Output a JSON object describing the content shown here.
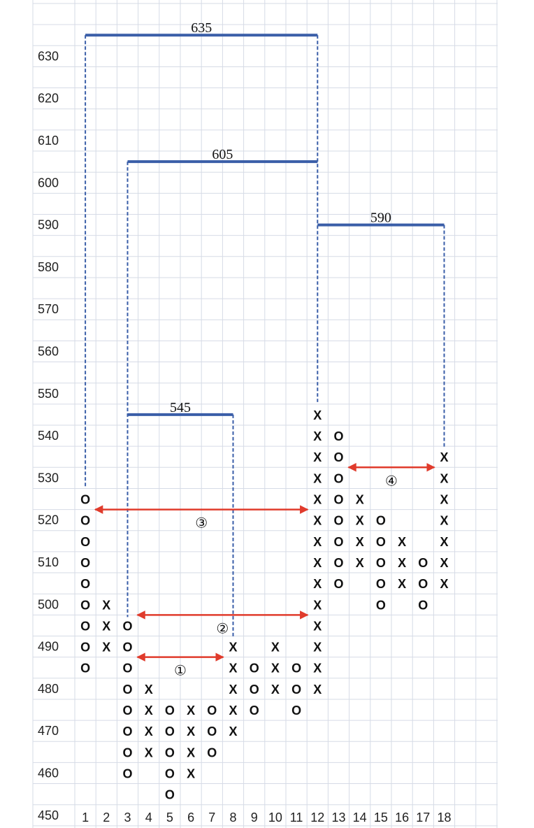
{
  "chart_data": {
    "type": "point-and-figure",
    "box_size": 5,
    "ylim": [
      445,
      640
    ],
    "y_ticks": [
      630,
      620,
      610,
      600,
      590,
      580,
      570,
      560,
      550,
      540,
      530,
      520,
      510,
      500,
      490,
      480,
      470,
      460,
      450
    ],
    "x_ticks": [
      "1",
      "2",
      "3",
      "4",
      "5",
      "6",
      "7",
      "8",
      "9",
      "10",
      "11",
      "12",
      "13",
      "14",
      "15",
      "16",
      "17",
      "18"
    ],
    "grid": true,
    "columns": [
      {
        "col": 1,
        "mark": "O",
        "prices": [
          525,
          520,
          515,
          510,
          505,
          500,
          495,
          490,
          485
        ]
      },
      {
        "col": 2,
        "mark": "X",
        "prices": [
          490,
          495,
          500
        ]
      },
      {
        "col": 3,
        "mark": "O",
        "prices": [
          495,
          490,
          485,
          480,
          475,
          470,
          465,
          460
        ]
      },
      {
        "col": 4,
        "mark": "X",
        "prices": [
          465,
          470,
          475,
          480
        ]
      },
      {
        "col": 5,
        "mark": "O",
        "prices": [
          475,
          470,
          465,
          460,
          455
        ]
      },
      {
        "col": 6,
        "mark": "X",
        "prices": [
          460,
          465,
          470,
          475
        ]
      },
      {
        "col": 7,
        "mark": "O",
        "prices": [
          475,
          470,
          465
        ]
      },
      {
        "col": 8,
        "mark": "X",
        "prices": [
          470,
          475,
          480,
          485,
          490
        ]
      },
      {
        "col": 9,
        "mark": "O",
        "prices": [
          485,
          480,
          475
        ]
      },
      {
        "col": 10,
        "mark": "X",
        "prices": [
          480,
          485,
          490
        ]
      },
      {
        "col": 11,
        "mark": "O",
        "prices": [
          485,
          480,
          475
        ]
      },
      {
        "col": 12,
        "mark": "X",
        "prices": [
          480,
          485,
          490,
          495,
          500,
          505,
          510,
          515,
          520,
          525,
          530,
          535,
          540,
          545
        ]
      },
      {
        "col": 13,
        "mark": "O",
        "prices": [
          540,
          535,
          530,
          525,
          520,
          515,
          510,
          505
        ]
      },
      {
        "col": 14,
        "mark": "X",
        "prices": [
          510,
          515,
          520,
          525
        ]
      },
      {
        "col": 15,
        "mark": "O",
        "prices": [
          520,
          515,
          510,
          505,
          500
        ]
      },
      {
        "col": 16,
        "mark": "X",
        "prices": [
          505,
          510,
          515
        ]
      },
      {
        "col": 17,
        "mark": "O",
        "prices": [
          510,
          505,
          500
        ]
      },
      {
        "col": 18,
        "mark": "X",
        "prices": [
          505,
          510,
          515,
          520,
          525,
          530,
          535
        ]
      }
    ],
    "targets": [
      {
        "label": "635",
        "value": 635,
        "from_col": 1,
        "to_col": 12,
        "drop_from": 528,
        "drop_to": 548
      },
      {
        "label": "605",
        "value": 605,
        "from_col": 3,
        "to_col": 12,
        "drop_from": 497,
        "drop_to": 605
      },
      {
        "label": "590",
        "value": 590,
        "from_col": 12,
        "to_col": 18,
        "drop_from": 548,
        "drop_to": 537
      },
      {
        "label": "545",
        "value": 545,
        "from_col": 3,
        "to_col": 8,
        "drop_from": 545,
        "drop_to": 492
      }
    ],
    "counts": [
      {
        "label": "①",
        "y": 487.5,
        "from_col": 3,
        "to_col": 8
      },
      {
        "label": "②",
        "y": 497.5,
        "from_col": 3,
        "to_col": 12
      },
      {
        "label": "③",
        "y": 522.5,
        "from_col": 1,
        "to_col": 12
      },
      {
        "label": "④",
        "y": 532.5,
        "from_col": 13,
        "to_col": 18
      }
    ],
    "colors": {
      "target_line": "#3a5ea8",
      "count_arrow": "#e03b2c",
      "grid": "#d6dbe6"
    }
  }
}
